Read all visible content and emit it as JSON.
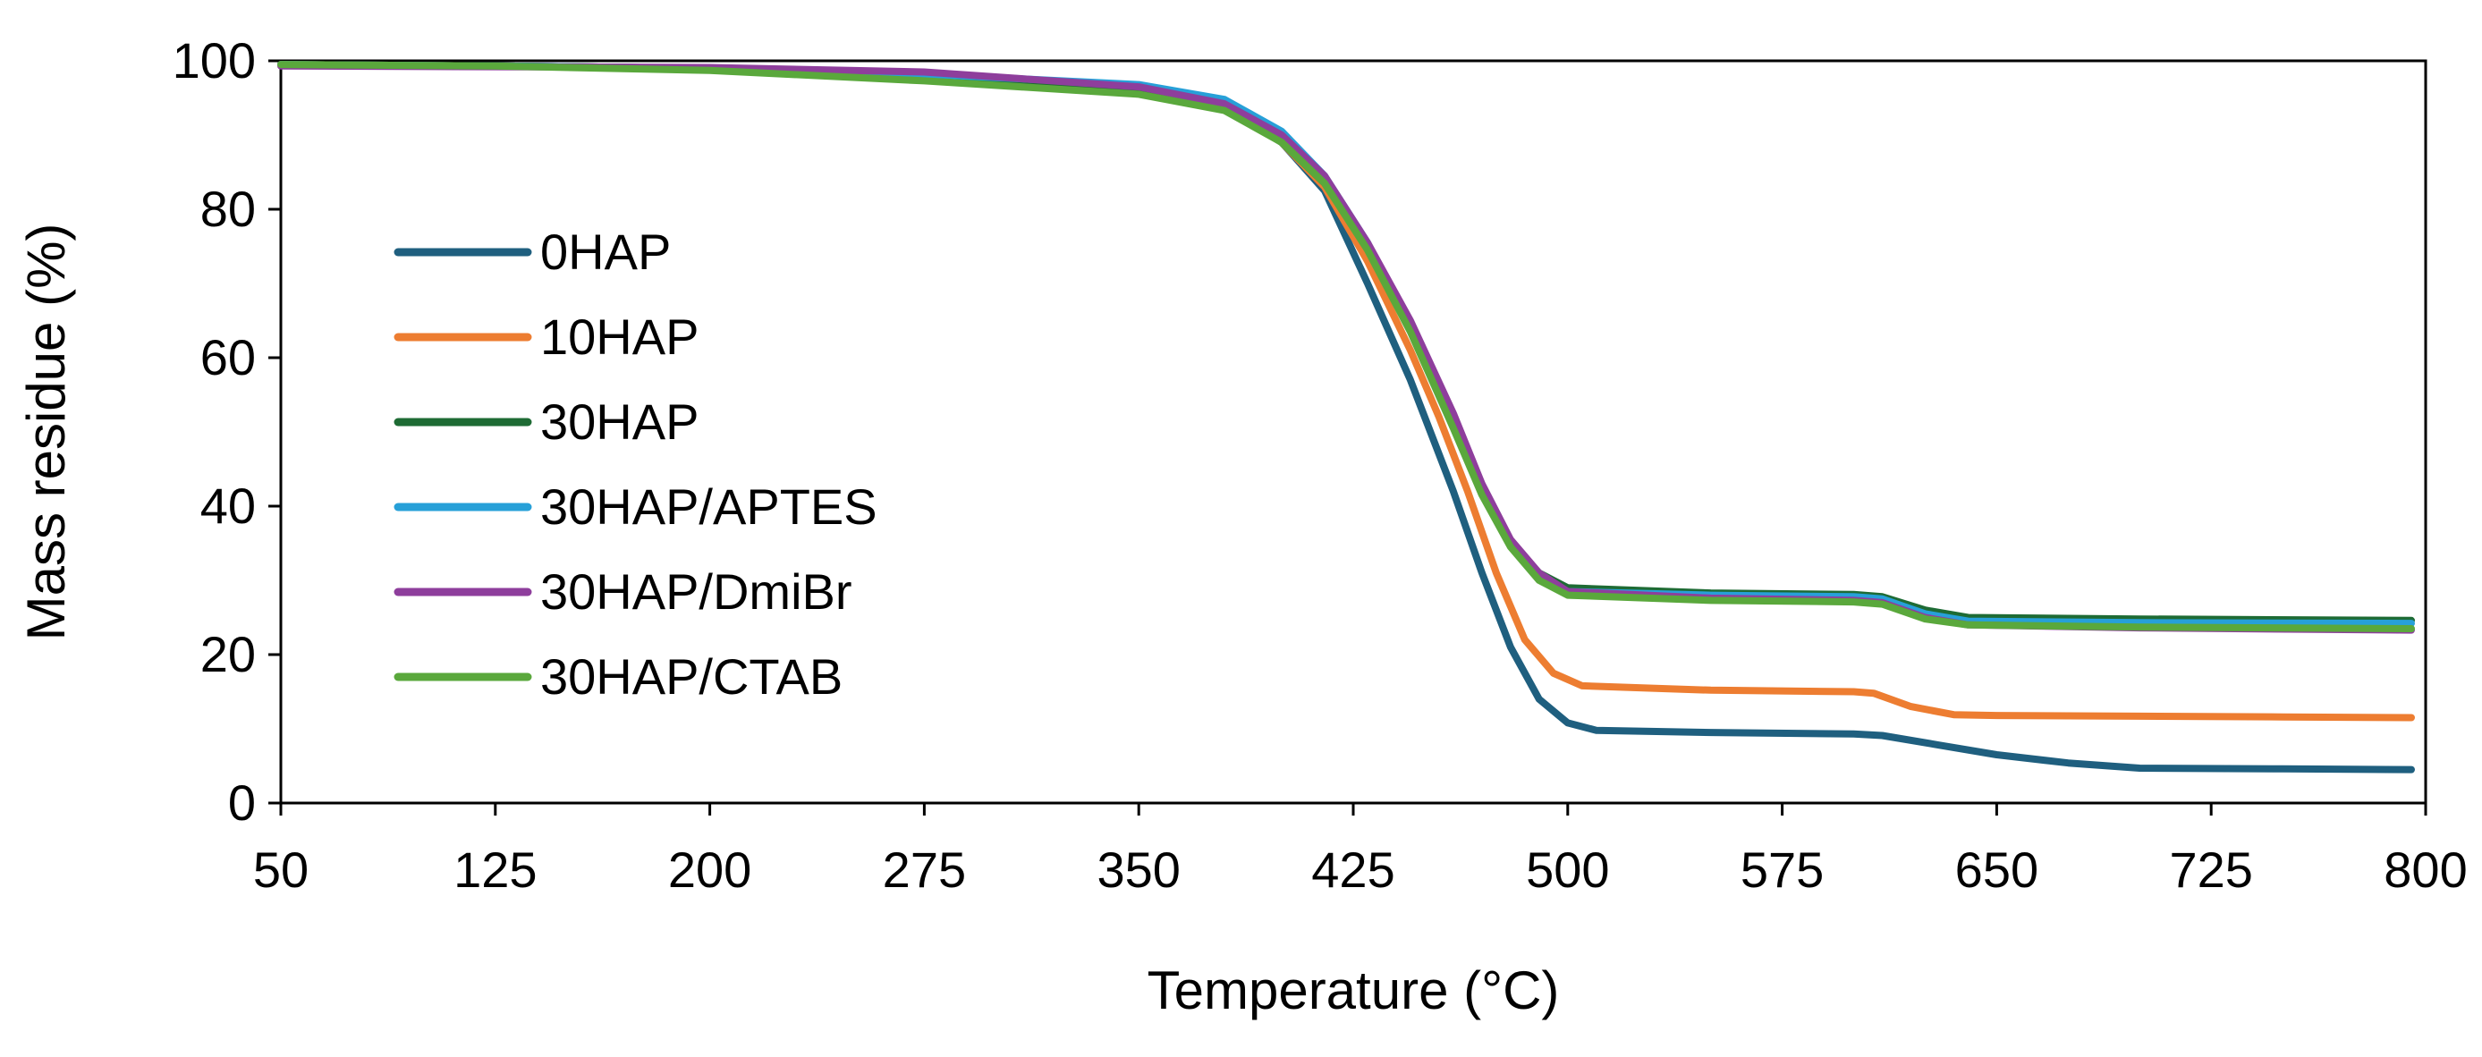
{
  "chart_data": {
    "type": "line",
    "title": "",
    "xlabel": "Temperature (°C)",
    "ylabel": "Mass residue (%)",
    "xlim": [
      50,
      800
    ],
    "ylim": [
      0,
      100
    ],
    "xticks": [
      50,
      125,
      200,
      275,
      350,
      425,
      500,
      575,
      650,
      725,
      800
    ],
    "yticks": [
      0,
      20,
      40,
      60,
      80,
      100
    ],
    "grid": false,
    "legend_position": "left",
    "series": [
      {
        "name": "0HAP",
        "color": "#1f5f7f",
        "points": [
          [
            50,
            99.5
          ],
          [
            125,
            99.3
          ],
          [
            200,
            99.0
          ],
          [
            275,
            98.0
          ],
          [
            350,
            96.5
          ],
          [
            380,
            94.0
          ],
          [
            400,
            89.0
          ],
          [
            415,
            82.5
          ],
          [
            430,
            70.0
          ],
          [
            445,
            57.0
          ],
          [
            460,
            42.0
          ],
          [
            470,
            31.0
          ],
          [
            480,
            21.0
          ],
          [
            490,
            14.0
          ],
          [
            500,
            10.8
          ],
          [
            510,
            9.8
          ],
          [
            550,
            9.5
          ],
          [
            600,
            9.3
          ],
          [
            610,
            9.1
          ],
          [
            630,
            7.8
          ],
          [
            650,
            6.5
          ],
          [
            675,
            5.4
          ],
          [
            700,
            4.7
          ],
          [
            750,
            4.6
          ],
          [
            795,
            4.5
          ]
        ]
      },
      {
        "name": "10HAP",
        "color": "#ed7d31",
        "points": [
          [
            50,
            99.5
          ],
          [
            125,
            99.3
          ],
          [
            200,
            99.0
          ],
          [
            275,
            98.0
          ],
          [
            350,
            96.5
          ],
          [
            380,
            94.0
          ],
          [
            400,
            89.0
          ],
          [
            415,
            83.0
          ],
          [
            430,
            73.0
          ],
          [
            445,
            61.0
          ],
          [
            455,
            52.0
          ],
          [
            465,
            42.0
          ],
          [
            475,
            31.0
          ],
          [
            485,
            22.0
          ],
          [
            495,
            17.5
          ],
          [
            505,
            15.8
          ],
          [
            550,
            15.2
          ],
          [
            600,
            15.0
          ],
          [
            607,
            14.8
          ],
          [
            620,
            13.0
          ],
          [
            635,
            11.9
          ],
          [
            650,
            11.8
          ],
          [
            700,
            11.7
          ],
          [
            750,
            11.6
          ],
          [
            795,
            11.5
          ]
        ]
      },
      {
        "name": "30HAP",
        "color": "#1e6b34",
        "points": [
          [
            50,
            99.5
          ],
          [
            125,
            99.3
          ],
          [
            200,
            99.0
          ],
          [
            275,
            98.0
          ],
          [
            350,
            96.3
          ],
          [
            380,
            93.8
          ],
          [
            400,
            89.0
          ],
          [
            415,
            83.5
          ],
          [
            430,
            75.0
          ],
          [
            445,
            64.0
          ],
          [
            460,
            51.0
          ],
          [
            470,
            42.0
          ],
          [
            480,
            35.0
          ],
          [
            490,
            31.0
          ],
          [
            500,
            29.0
          ],
          [
            550,
            28.3
          ],
          [
            600,
            28.1
          ],
          [
            610,
            27.8
          ],
          [
            625,
            26.0
          ],
          [
            640,
            25.0
          ],
          [
            700,
            24.8
          ],
          [
            795,
            24.6
          ]
        ]
      },
      {
        "name": "30HAP/APTES",
        "color": "#27a0d8",
        "points": [
          [
            50,
            99.5
          ],
          [
            125,
            99.3
          ],
          [
            200,
            99.0
          ],
          [
            275,
            98.2
          ],
          [
            350,
            96.8
          ],
          [
            380,
            94.8
          ],
          [
            400,
            90.5
          ],
          [
            415,
            84.5
          ],
          [
            430,
            75.5
          ],
          [
            445,
            64.0
          ],
          [
            460,
            51.0
          ],
          [
            470,
            42.0
          ],
          [
            480,
            35.0
          ],
          [
            490,
            30.5
          ],
          [
            500,
            28.5
          ],
          [
            550,
            28.0
          ],
          [
            600,
            27.8
          ],
          [
            610,
            27.5
          ],
          [
            625,
            25.5
          ],
          [
            640,
            24.5
          ],
          [
            700,
            24.3
          ],
          [
            795,
            24.2
          ]
        ]
      },
      {
        "name": "30HAP/DmiBr",
        "color": "#8e3e9c",
        "points": [
          [
            50,
            99.3
          ],
          [
            125,
            99.2
          ],
          [
            200,
            99.1
          ],
          [
            275,
            98.5
          ],
          [
            350,
            96.5
          ],
          [
            380,
            94.2
          ],
          [
            400,
            90.0
          ],
          [
            415,
            84.5
          ],
          [
            430,
            75.5
          ],
          [
            445,
            65.0
          ],
          [
            460,
            52.5
          ],
          [
            470,
            43.0
          ],
          [
            480,
            35.5
          ],
          [
            490,
            31.0
          ],
          [
            500,
            28.5
          ],
          [
            550,
            27.6
          ],
          [
            600,
            27.3
          ],
          [
            610,
            27.0
          ],
          [
            625,
            25.0
          ],
          [
            640,
            24.0
          ],
          [
            700,
            23.6
          ],
          [
            795,
            23.3
          ]
        ]
      },
      {
        "name": "30HAP/CTAB",
        "color": "#5aa83c",
        "points": [
          [
            50,
            99.5
          ],
          [
            125,
            99.3
          ],
          [
            200,
            98.7
          ],
          [
            275,
            97.3
          ],
          [
            350,
            95.5
          ],
          [
            380,
            93.3
          ],
          [
            400,
            89.0
          ],
          [
            415,
            83.5
          ],
          [
            430,
            74.5
          ],
          [
            445,
            63.5
          ],
          [
            460,
            50.5
          ],
          [
            470,
            41.5
          ],
          [
            480,
            34.5
          ],
          [
            490,
            30.0
          ],
          [
            500,
            28.0
          ],
          [
            550,
            27.3
          ],
          [
            600,
            27.1
          ],
          [
            610,
            26.8
          ],
          [
            625,
            24.8
          ],
          [
            640,
            24.0
          ],
          [
            700,
            23.7
          ],
          [
            795,
            23.5
          ]
        ]
      }
    ]
  }
}
